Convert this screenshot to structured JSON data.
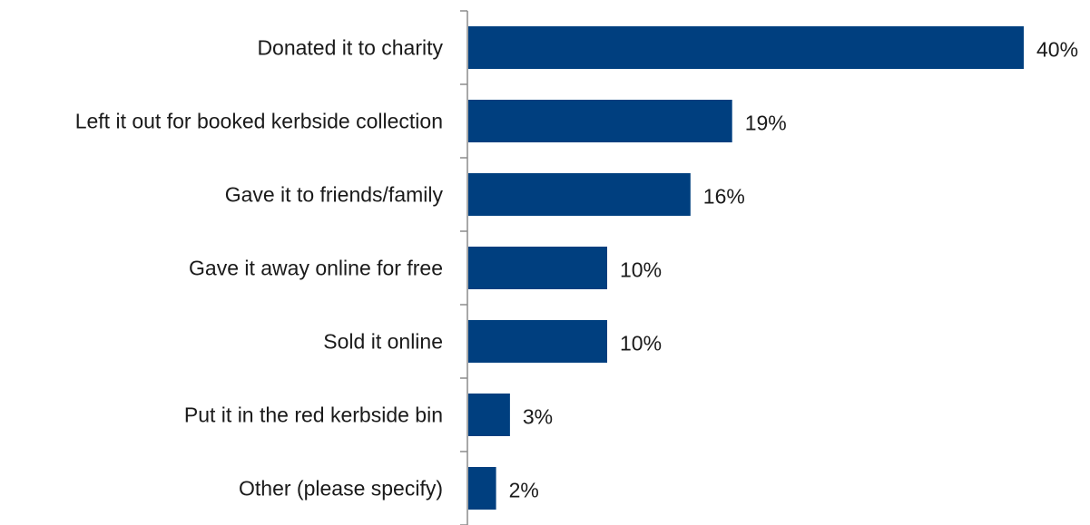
{
  "chart_data": {
    "type": "bar",
    "orientation": "horizontal",
    "categories": [
      "Donated it to charity",
      "Left it out for booked kerbside collection",
      "Gave it to friends/family",
      "Gave it away online for free",
      "Sold it online",
      "Put it in the red kerbside bin",
      "Other (please specify)"
    ],
    "values": [
      40,
      19,
      16,
      10,
      10,
      3,
      2
    ],
    "value_labels": [
      "40%",
      "19%",
      "16%",
      "10%",
      "10%",
      "3%",
      "2%"
    ],
    "unit": "%",
    "bar_color": "#003f7f",
    "grid": false,
    "legend": "none"
  }
}
